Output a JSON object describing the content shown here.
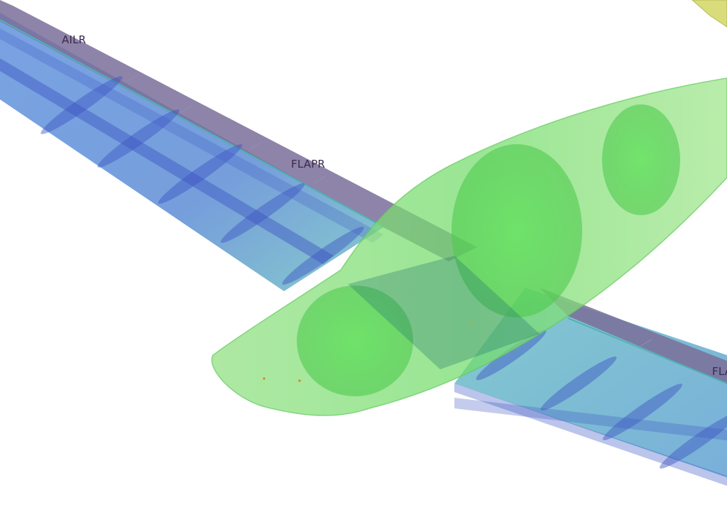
{
  "viewer": {
    "background": "#ffffff"
  },
  "model": {
    "components": [
      {
        "name": "wing",
        "color": "#5b78d4"
      },
      {
        "name": "control-surface",
        "color": "#7a6f9a"
      },
      {
        "name": "fuselage",
        "color": "#6fe06a"
      },
      {
        "name": "tail",
        "color": "#d9dc7a"
      }
    ],
    "labels": {
      "ailr": "AILR",
      "flapr": "FLAPR",
      "flapl_partial": "FLA"
    },
    "label_color": "#3a2a4a"
  }
}
